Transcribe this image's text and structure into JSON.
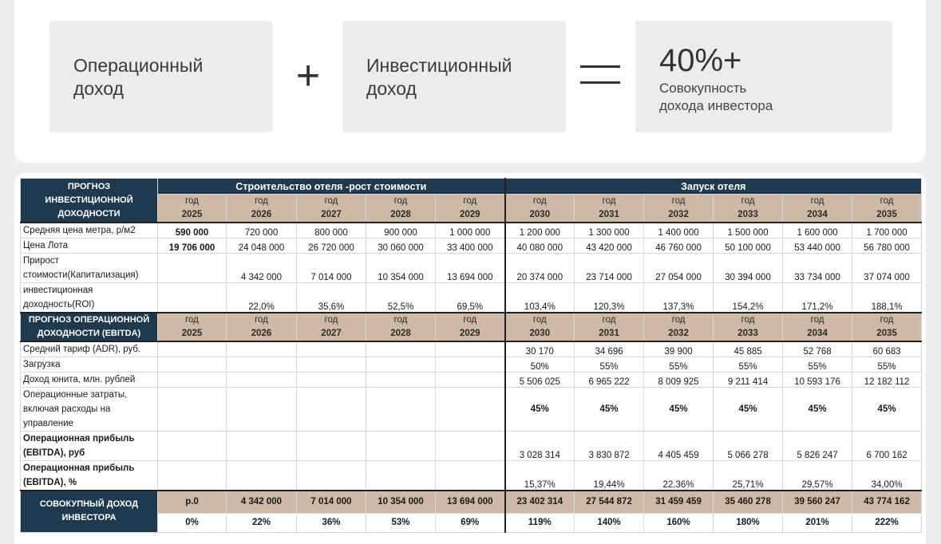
{
  "formula": {
    "box1": "Операционный\nдоход",
    "plus": "+",
    "box2": "Инвестиционный\nдоход",
    "result_big": "40%+",
    "result_sub": "Совокупность\nдохода инвестора"
  },
  "table": {
    "invest_title": "ПРОГНОЗ ИНВЕСТИЦИОННОЙ ДОХОДНОСТИ",
    "phase1": "Строительство отеля -рост стоимости",
    "phase2": "Запуск отеля",
    "year_word": "год",
    "years": [
      "2025",
      "2026",
      "2027",
      "2028",
      "2029",
      "2030",
      "2031",
      "2032",
      "2033",
      "2034",
      "2035"
    ],
    "avg_price_label": "Средняя цена метра, р/м2",
    "avg_price": [
      "590 000",
      "720 000",
      "800 000",
      "900 000",
      "1 000 000",
      "1 200 000",
      "1 300 000",
      "1 400 000",
      "1 500 000",
      "1 600 000",
      "1 700 000"
    ],
    "lot_price_label": "Цена Лота",
    "lot_price": [
      "19 706 000",
      "24 048 000",
      "26 720 000",
      "30 060 000",
      "33 400 000",
      "40 080 000",
      "43 420 000",
      "46 760 000",
      "50 100 000",
      "53 440 000",
      "56 780 000"
    ],
    "growth_label": "Прирост стоимости(Капитализация)",
    "growth": [
      "",
      "4 342 000",
      "7 014 000",
      "10 354 000",
      "13 694 000",
      "20 374 000",
      "23 714 000",
      "27 054 000",
      "30 394 000",
      "33 734 000",
      "37 074 000"
    ],
    "roi_label": "инвестиционная доходность(ROI)",
    "roi": [
      "",
      "22,0%",
      "35,6%",
      "52,5%",
      "69,5%",
      "103,4%",
      "120,3%",
      "137,3%",
      "154,2%",
      "171,2%",
      "188,1%"
    ],
    "oper_title": "ПРОГНОЗ ОПЕРАЦИОННОЙ ДОХОДНОСТИ (EBITDA)",
    "adr_label": "Средний тариф (ADR), руб.",
    "adr": [
      "",
      "",
      "",
      "",
      "",
      "30 170",
      "34 696",
      "39 900",
      "45 885",
      "52 768",
      "60 683"
    ],
    "load_label": "Загрузка",
    "load": [
      "",
      "",
      "",
      "",
      "",
      "50%",
      "55%",
      "55%",
      "55%",
      "55%",
      "55%"
    ],
    "unit_income_label": "Доход юнита, млн. рублей",
    "unit_income": [
      "",
      "",
      "",
      "",
      "",
      "5 506 025",
      "6 965 222",
      "8 009 925",
      "9 211 414",
      "10 593 176",
      "12 182 112"
    ],
    "opex_label": "Операционные затраты, включая расходы на управление",
    "opex": [
      "",
      "",
      "",
      "",
      "",
      "45%",
      "45%",
      "45%",
      "45%",
      "45%",
      "45%"
    ],
    "ebitda_rub_label": "Операционная прибыль (EBITDA), руб",
    "ebitda_rub": [
      "",
      "",
      "",
      "",
      "",
      "3 028 314",
      "3 830 872",
      "4 405 459",
      "5 066 278",
      "5 826 247",
      "6 700 162"
    ],
    "ebitda_pct_label": "Операционная прибыль (EBITDA), %",
    "ebitda_pct": [
      "",
      "",
      "",
      "",
      "",
      "15,37%",
      "19,44%",
      "22,36%",
      "25,71%",
      "29,57%",
      "34,00%"
    ],
    "total_label": "СОВОКУПНЫЙ ДОХОД ИНВЕСТОРА",
    "total": [
      "р.0",
      "4 342 000",
      "7 014 000",
      "10 354 000",
      "13 694 000",
      "23 402 314",
      "27 544 872",
      "31 459 459",
      "35 460 278",
      "39 560 247",
      "43 774 162"
    ],
    "total_pct": [
      "0%",
      "22%",
      "36%",
      "53%",
      "69%",
      "119%",
      "140%",
      "160%",
      "180%",
      "201%",
      "222%"
    ]
  }
}
